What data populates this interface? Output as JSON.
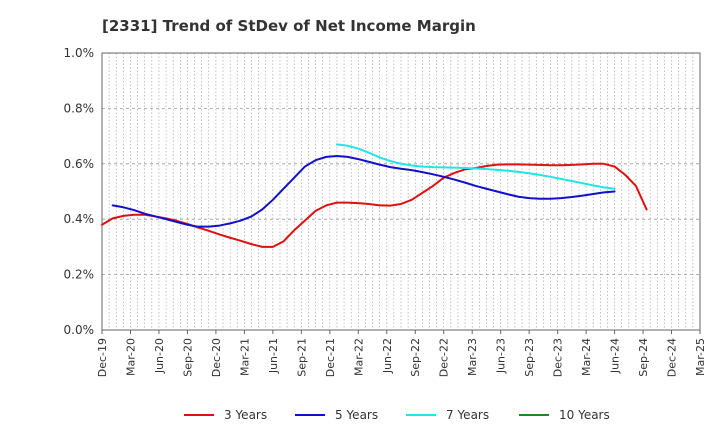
{
  "chart_data": {
    "type": "line",
    "title": "[2331]  Trend of StDev of Net Income Margin",
    "xlabel": "",
    "ylabel": "",
    "ylim": [
      0,
      1.0
    ],
    "yticks": [
      "0.0%",
      "0.2%",
      "0.4%",
      "0.6%",
      "0.8%",
      "1.0%"
    ],
    "ytick_values": [
      0,
      0.2,
      0.4,
      0.6,
      0.8,
      1.0
    ],
    "xticks": [
      "Dec-19",
      "Mar-20",
      "Jun-20",
      "Sep-20",
      "Dec-20",
      "Mar-21",
      "Jun-21",
      "Sep-21",
      "Dec-21",
      "Mar-22",
      "Jun-22",
      "Sep-22",
      "Dec-22",
      "Mar-23",
      "Jun-23",
      "Sep-23",
      "Dec-23",
      "Mar-24",
      "Jun-24",
      "Sep-24",
      "Dec-24",
      "Mar-25"
    ],
    "grid": true,
    "legend_position": "bottom",
    "series": [
      {
        "name": "3 Years",
        "color": "#dd1111",
        "points": [
          [
            0,
            0.38
          ],
          [
            1,
            0.403
          ],
          [
            2,
            0.412
          ],
          [
            3,
            0.416
          ],
          [
            4,
            0.416
          ],
          [
            5,
            0.41
          ],
          [
            6,
            0.403
          ],
          [
            7,
            0.394
          ],
          [
            8,
            0.383
          ],
          [
            9,
            0.37
          ],
          [
            10,
            0.358
          ],
          [
            11,
            0.345
          ],
          [
            12,
            0.333
          ],
          [
            13,
            0.322
          ],
          [
            14,
            0.31
          ],
          [
            15,
            0.3
          ],
          [
            16,
            0.3
          ],
          [
            17,
            0.32
          ],
          [
            18,
            0.36
          ],
          [
            19,
            0.395
          ],
          [
            20,
            0.43
          ],
          [
            21,
            0.45
          ],
          [
            22,
            0.46
          ],
          [
            23,
            0.46
          ],
          [
            24,
            0.458
          ],
          [
            25,
            0.455
          ],
          [
            26,
            0.45
          ],
          [
            27,
            0.449
          ],
          [
            28,
            0.455
          ],
          [
            29,
            0.47
          ],
          [
            30,
            0.495
          ],
          [
            31,
            0.52
          ],
          [
            32,
            0.55
          ],
          [
            33,
            0.567
          ],
          [
            34,
            0.58
          ],
          [
            35,
            0.585
          ],
          [
            36,
            0.592
          ],
          [
            37,
            0.597
          ],
          [
            38,
            0.598
          ],
          [
            39,
            0.598
          ],
          [
            40,
            0.597
          ],
          [
            41,
            0.596
          ],
          [
            42,
            0.595
          ],
          [
            43,
            0.595
          ],
          [
            44,
            0.596
          ],
          [
            45,
            0.598
          ],
          [
            46,
            0.6
          ],
          [
            47,
            0.6
          ],
          [
            48,
            0.59
          ],
          [
            49,
            0.56
          ],
          [
            50,
            0.52
          ],
          [
            51,
            0.435
          ]
        ]
      },
      {
        "name": "5 Years",
        "color": "#1111cc",
        "points": [
          [
            1,
            0.45
          ],
          [
            2,
            0.443
          ],
          [
            3,
            0.433
          ],
          [
            4,
            0.42
          ],
          [
            5,
            0.41
          ],
          [
            6,
            0.4
          ],
          [
            7,
            0.39
          ],
          [
            8,
            0.38
          ],
          [
            9,
            0.373
          ],
          [
            10,
            0.373
          ],
          [
            11,
            0.377
          ],
          [
            12,
            0.385
          ],
          [
            13,
            0.395
          ],
          [
            14,
            0.41
          ],
          [
            15,
            0.435
          ],
          [
            16,
            0.47
          ],
          [
            17,
            0.51
          ],
          [
            18,
            0.55
          ],
          [
            19,
            0.59
          ],
          [
            20,
            0.613
          ],
          [
            21,
            0.625
          ],
          [
            22,
            0.628
          ],
          [
            23,
            0.625
          ],
          [
            24,
            0.617
          ],
          [
            25,
            0.607
          ],
          [
            26,
            0.597
          ],
          [
            27,
            0.588
          ],
          [
            28,
            0.582
          ],
          [
            29,
            0.577
          ],
          [
            30,
            0.57
          ],
          [
            31,
            0.562
          ],
          [
            32,
            0.553
          ],
          [
            33,
            0.543
          ],
          [
            34,
            0.532
          ],
          [
            35,
            0.52
          ],
          [
            36,
            0.51
          ],
          [
            37,
            0.5
          ],
          [
            38,
            0.49
          ],
          [
            39,
            0.481
          ],
          [
            40,
            0.476
          ],
          [
            41,
            0.474
          ],
          [
            42,
            0.474
          ],
          [
            43,
            0.476
          ],
          [
            44,
            0.48
          ],
          [
            45,
            0.485
          ],
          [
            46,
            0.491
          ],
          [
            47,
            0.497
          ],
          [
            48,
            0.5
          ]
        ]
      },
      {
        "name": "7 Years",
        "color": "#22e5e5",
        "points": [
          [
            22,
            0.67
          ],
          [
            23,
            0.665
          ],
          [
            24,
            0.655
          ],
          [
            25,
            0.64
          ],
          [
            26,
            0.623
          ],
          [
            27,
            0.61
          ],
          [
            28,
            0.6
          ],
          [
            29,
            0.594
          ],
          [
            30,
            0.59
          ],
          [
            31,
            0.588
          ],
          [
            32,
            0.587
          ],
          [
            33,
            0.586
          ],
          [
            34,
            0.585
          ],
          [
            35,
            0.583
          ],
          [
            36,
            0.581
          ],
          [
            37,
            0.578
          ],
          [
            38,
            0.575
          ],
          [
            39,
            0.571
          ],
          [
            40,
            0.566
          ],
          [
            41,
            0.56
          ],
          [
            42,
            0.553
          ],
          [
            43,
            0.545
          ],
          [
            44,
            0.538
          ],
          [
            45,
            0.53
          ],
          [
            46,
            0.522
          ],
          [
            47,
            0.515
          ],
          [
            48,
            0.51
          ]
        ]
      },
      {
        "name": "10 Years",
        "color": "#228822",
        "points": []
      }
    ]
  }
}
